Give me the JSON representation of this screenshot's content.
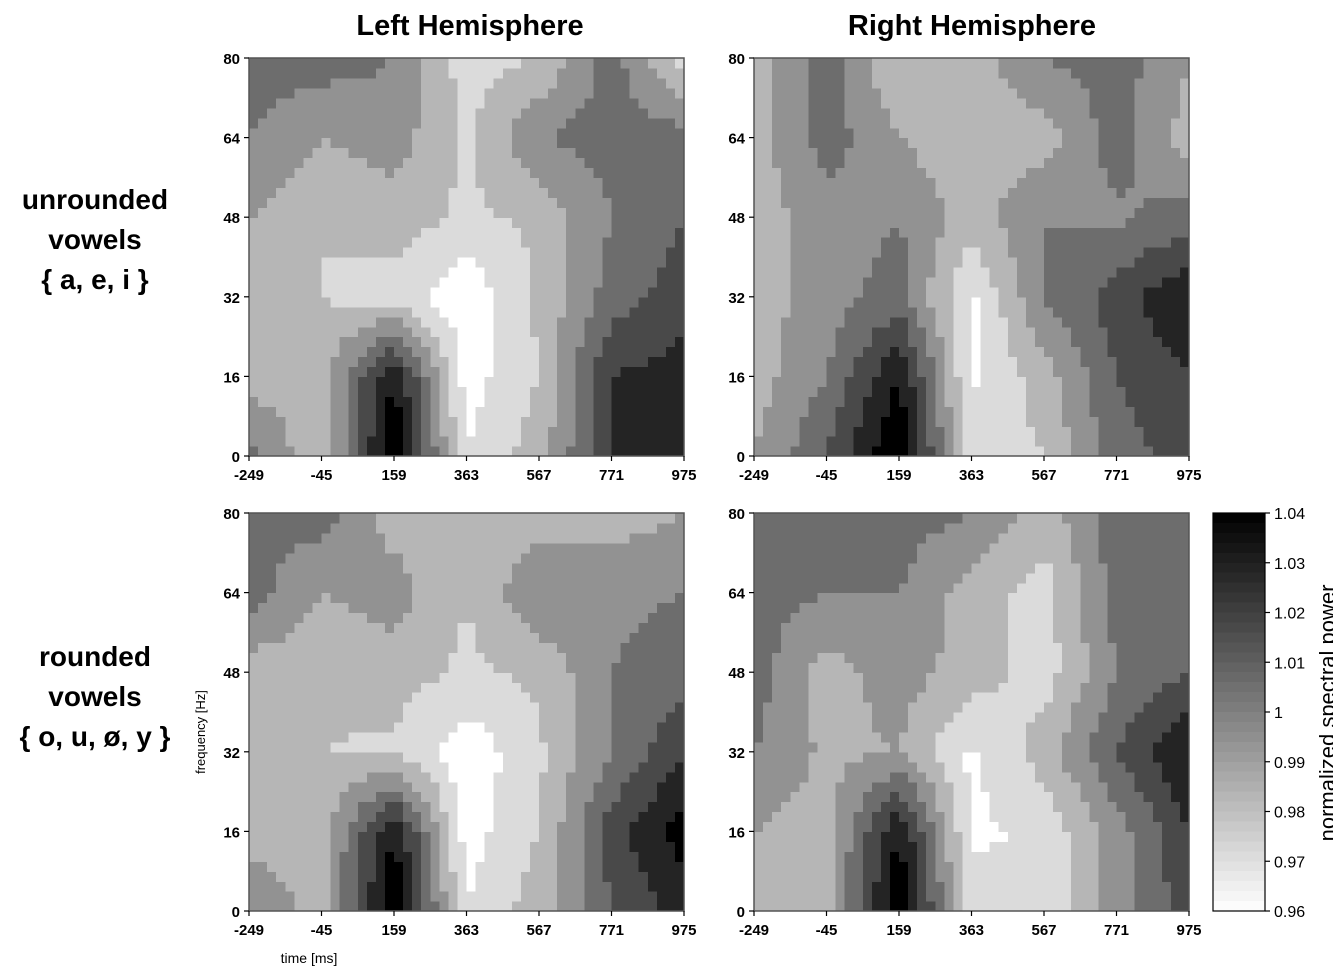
{
  "column_titles": [
    "Left Hemisphere",
    "Right Hemisphere"
  ],
  "row_labels": [
    [
      "unrounded",
      "vowels",
      "{ a, e, i }"
    ],
    [
      "rounded",
      "vowels",
      "{ o, u, ø, y }"
    ]
  ],
  "colorbar": {
    "title": "normalized spectral power",
    "ticks": [
      "1.04",
      "1.03",
      "1.02",
      "1.01",
      "1",
      "0.99",
      "0.98",
      "0.97",
      "0.96"
    ],
    "low_color": "#ffffff",
    "high_color": "#000000"
  },
  "chart_data": [
    {
      "type": "heatmap",
      "title": "Left Hemisphere",
      "row": "unrounded vowels { a, e, i }",
      "xlabel": "",
      "ylabel": "",
      "x": [
        -249,
        -45,
        159,
        363,
        567,
        771,
        975
      ],
      "y": [
        0,
        16,
        32,
        48,
        64,
        80
      ],
      "xticks": [
        "-249",
        "-45",
        "159",
        "363",
        "567",
        "771",
        "975"
      ],
      "yticks": [
        "0",
        "16",
        "32",
        "48",
        "64",
        "80"
      ],
      "z": [
        [
          1.005,
          0.98,
          1.04,
          0.97,
          0.985,
          1.02,
          1.025
        ],
        [
          0.985,
          0.985,
          1.03,
          0.965,
          0.98,
          1.02,
          1.025
        ],
        [
          0.985,
          0.98,
          0.975,
          0.962,
          0.982,
          1.005,
          1.015
        ],
        [
          0.99,
          0.98,
          0.985,
          0.978,
          0.982,
          1.0,
          1.01
        ],
        [
          1.0,
          0.99,
          0.995,
          0.978,
          1.0,
          1.005,
          1.005
        ],
        [
          1.005,
          1.005,
          1.0,
          0.975,
          0.98,
          1.005,
          0.975
        ]
      ],
      "zlim": [
        0.96,
        1.04
      ]
    },
    {
      "type": "heatmap",
      "title": "Right Hemisphere",
      "row": "unrounded vowels { a, e, i }",
      "xlabel": "",
      "ylabel": "",
      "x": [
        -249,
        -45,
        159,
        363,
        567,
        771,
        975
      ],
      "y": [
        0,
        16,
        32,
        48,
        64,
        80
      ],
      "xticks": [
        "-249",
        "-45",
        "159",
        "363",
        "567",
        "771",
        "975"
      ],
      "yticks": [
        "0",
        "16",
        "32",
        "48",
        "64",
        "80"
      ],
      "z": [
        [
          0.99,
          1.01,
          1.04,
          0.975,
          0.98,
          1.005,
          1.015
        ],
        [
          0.985,
          1.0,
          1.03,
          0.968,
          0.985,
          1.01,
          1.02
        ],
        [
          0.985,
          0.995,
          1.005,
          0.968,
          1.0,
          1.015,
          1.03
        ],
        [
          0.985,
          0.995,
          1.0,
          0.985,
          1.0,
          0.998,
          1.005
        ],
        [
          0.985,
          1.005,
          0.99,
          0.982,
          0.985,
          1.005,
          0.985
        ],
        [
          0.985,
          1.005,
          0.98,
          0.985,
          1.0,
          1.005,
          0.99
        ]
      ],
      "zlim": [
        0.96,
        1.04
      ]
    },
    {
      "type": "heatmap",
      "title": "",
      "row": "rounded vowels { o, u, ø, y }",
      "xlabel": "time [ms]",
      "ylabel": "frequency [Hz]",
      "x": [
        -249,
        -45,
        159,
        363,
        567,
        771,
        975
      ],
      "y": [
        0,
        16,
        32,
        48,
        64,
        80
      ],
      "xticks": [
        "-249",
        "-45",
        "159",
        "363",
        "567",
        "771",
        "975"
      ],
      "yticks": [
        "0",
        "16",
        "32",
        "48",
        "64",
        "80"
      ],
      "z": [
        [
          1.0,
          0.985,
          1.04,
          0.97,
          0.985,
          1.01,
          1.025
        ],
        [
          0.985,
          0.985,
          1.03,
          0.965,
          0.98,
          1.015,
          1.035
        ],
        [
          0.985,
          0.98,
          0.978,
          0.963,
          0.978,
          1.0,
          1.02
        ],
        [
          0.985,
          0.982,
          0.985,
          0.978,
          0.982,
          1.0,
          1.005
        ],
        [
          1.005,
          0.99,
          0.995,
          0.98,
          1.0,
          0.998,
          1.0
        ],
        [
          1.0,
          1.005,
          0.985,
          0.982,
          0.985,
          0.985,
          0.99
        ]
      ],
      "zlim": [
        0.96,
        1.04
      ]
    },
    {
      "type": "heatmap",
      "title": "",
      "row": "rounded vowels { o, u, ø, y }",
      "xlabel": "",
      "ylabel": "",
      "x": [
        -249,
        -45,
        159,
        363,
        567,
        771,
        975
      ],
      "y": [
        0,
        16,
        32,
        48,
        64,
        80
      ],
      "xticks": [
        "-249",
        "-45",
        "159",
        "363",
        "567",
        "771",
        "975"
      ],
      "yticks": [
        "0",
        "16",
        "32",
        "48",
        "64",
        "80"
      ],
      "z": [
        [
          0.99,
          0.985,
          1.04,
          0.975,
          0.97,
          0.995,
          1.015
        ],
        [
          0.99,
          0.985,
          1.03,
          0.968,
          0.972,
          0.995,
          1.02
        ],
        [
          1.0,
          0.988,
          0.99,
          0.968,
          0.985,
          1.01,
          1.03
        ],
        [
          1.005,
          0.985,
          0.995,
          0.985,
          0.975,
          1.0,
          1.01
        ],
        [
          1.005,
          1.0,
          1.0,
          0.985,
          0.975,
          1.005,
          1.005
        ],
        [
          1.005,
          1.005,
          1.005,
          1.0,
          0.985,
          1.005,
          1.0
        ]
      ],
      "zlim": [
        0.96,
        1.04
      ]
    }
  ],
  "axis_labels": {
    "x": "time [ms]",
    "y": "frequency [Hz]"
  }
}
